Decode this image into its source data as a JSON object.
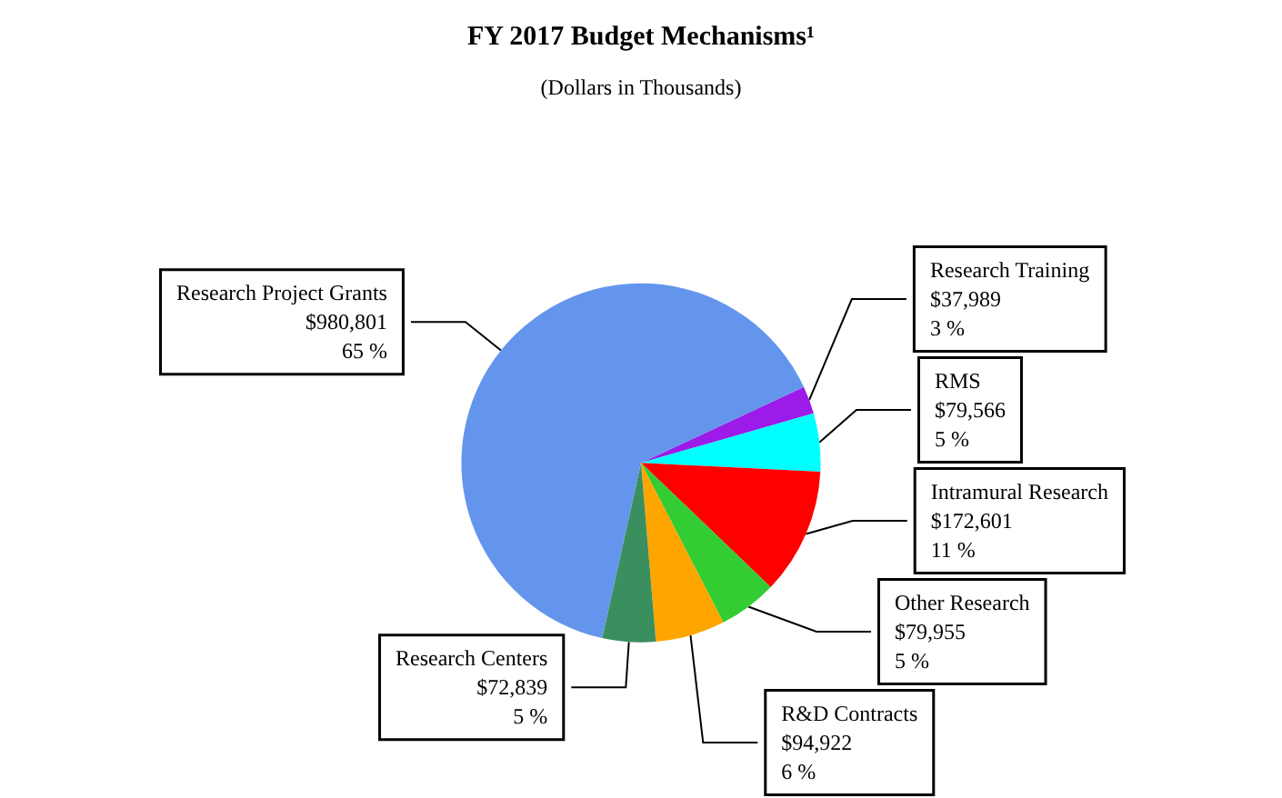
{
  "chart_data": {
    "type": "pie",
    "title": "FY 2017 Budget Mechanisms¹",
    "subtitle": "(Dollars in Thousands)",
    "categories": [
      "Research Training",
      "RMS",
      "Intramural Research",
      "Other Research",
      "R&D Contracts",
      "Research Centers",
      "Research Project Grants"
    ],
    "values": [
      37989,
      79566,
      172601,
      79955,
      94922,
      72839,
      980801
    ],
    "value_labels": [
      "$37,989\n3 %",
      "$79,566\n5 %",
      "$172,601\n11 %",
      "$79,955\n5 %",
      "$94,922\n6 %",
      "$72,839\n5 %",
      "$980,801\n65 %"
    ],
    "colors": [
      "#9c1be8",
      "#00ffff",
      "#ff0000",
      "#33cc33",
      "#ffa500",
      "#3a8f5e",
      "#6495ed"
    ],
    "legend": false
  }
}
